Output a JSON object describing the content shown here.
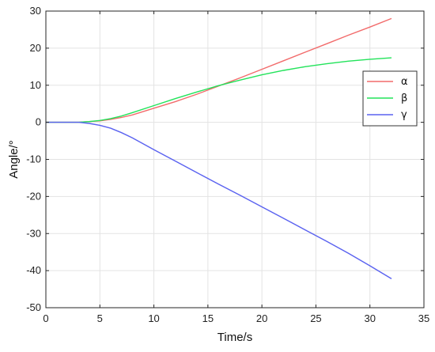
{
  "chart_data": {
    "type": "line",
    "title": "",
    "xlabel": "Time/s",
    "ylabel": "Angle/°",
    "xlim": [
      0,
      35
    ],
    "ylim": [
      -50,
      30
    ],
    "xticks": [
      0,
      5,
      10,
      15,
      20,
      25,
      30,
      35
    ],
    "yticks": [
      -50,
      -40,
      -30,
      -20,
      -10,
      0,
      10,
      20,
      30
    ],
    "grid": true,
    "legend_position": "right",
    "series": [
      {
        "name": "α",
        "color": "#f26b6b",
        "x": [
          0,
          3,
          4,
          5,
          6,
          7,
          8,
          10,
          12,
          14,
          16,
          18,
          20,
          22,
          24,
          26,
          28,
          30,
          32
        ],
        "y": [
          0,
          0,
          0.2,
          0.4,
          0.8,
          1.3,
          2.0,
          3.8,
          5.6,
          7.6,
          9.8,
          12.0,
          14.3,
          16.6,
          18.9,
          21.2,
          23.5,
          25.7,
          28.0
        ]
      },
      {
        "name": "β",
        "color": "#22e35a",
        "x": [
          0,
          3,
          4,
          5,
          6,
          7,
          8,
          10,
          12,
          14,
          16,
          18,
          20,
          22,
          24,
          26,
          28,
          30,
          32
        ],
        "y": [
          0,
          0,
          0.2,
          0.5,
          1.0,
          1.7,
          2.6,
          4.5,
          6.4,
          8.2,
          9.9,
          11.4,
          12.8,
          14.0,
          15.0,
          15.8,
          16.5,
          17.0,
          17.4
        ]
      },
      {
        "name": "γ",
        "color": "#5a62f0",
        "x": [
          0,
          3,
          4,
          5,
          6,
          7,
          8,
          10,
          12,
          14,
          16,
          18,
          20,
          22,
          24,
          26,
          28,
          30,
          32
        ],
        "y": [
          0,
          0,
          -0.3,
          -0.8,
          -1.6,
          -2.8,
          -4.2,
          -7.4,
          -10.5,
          -13.6,
          -16.7,
          -19.7,
          -22.8,
          -25.9,
          -29.0,
          -32.1,
          -35.3,
          -38.7,
          -42.2
        ]
      }
    ]
  }
}
